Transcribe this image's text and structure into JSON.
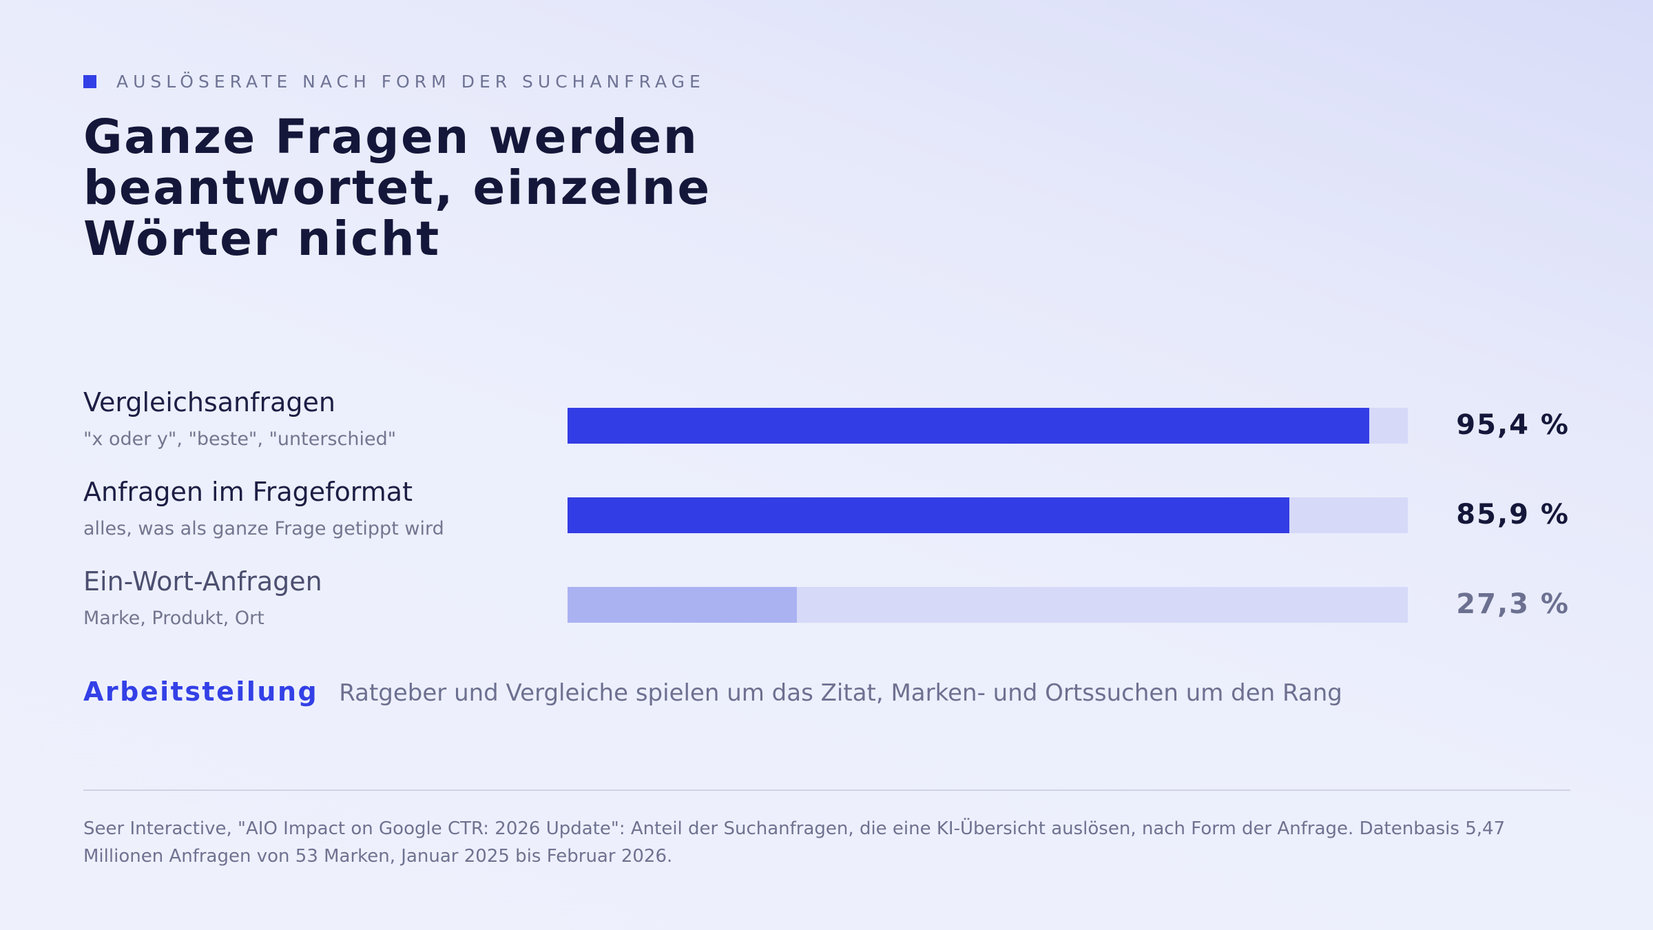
{
  "eyebrow": "AUSLÖSERATE NACH FORM DER SUCHANFRAGE",
  "title": "Ganze Fragen werden beantwortet, einzelne Wörter nicht",
  "colors": {
    "accent": "#3340e6",
    "bar_strong": "#333de5",
    "bar_light": "#abb2f2",
    "track": "#d6d9f7"
  },
  "chart_data": {
    "type": "bar",
    "orientation": "horizontal",
    "categories": [
      "Vergleichsanfragen",
      "Anfragen im Frageformat",
      "Ein-Wort-Anfragen"
    ],
    "subtitles": [
      "\"x oder y\", \"beste\", \"unterschied\"",
      "alles, was als ganze Frage getippt wird",
      "Marke, Produkt, Ort"
    ],
    "values": [
      95.4,
      85.9,
      27.3
    ],
    "value_labels": [
      "95,4 %",
      "85,9 %",
      "27,3 %"
    ],
    "xlim": [
      0,
      100
    ],
    "unit": "%",
    "grid": false
  },
  "note": {
    "key": "Arbeitsteilung",
    "text": "Ratgeber und Vergleiche spielen um das Zitat, Marken- und Ortssuchen um den Rang"
  },
  "source": "Seer Interactive, \"AIO Impact on Google CTR: 2026 Update\": Anteil der Suchanfragen, die eine KI-Übersicht auslösen, nach Form der Anfrage. Datenbasis 5,47 Millionen Anfragen von 53 Marken, Januar 2025 bis Februar 2026."
}
